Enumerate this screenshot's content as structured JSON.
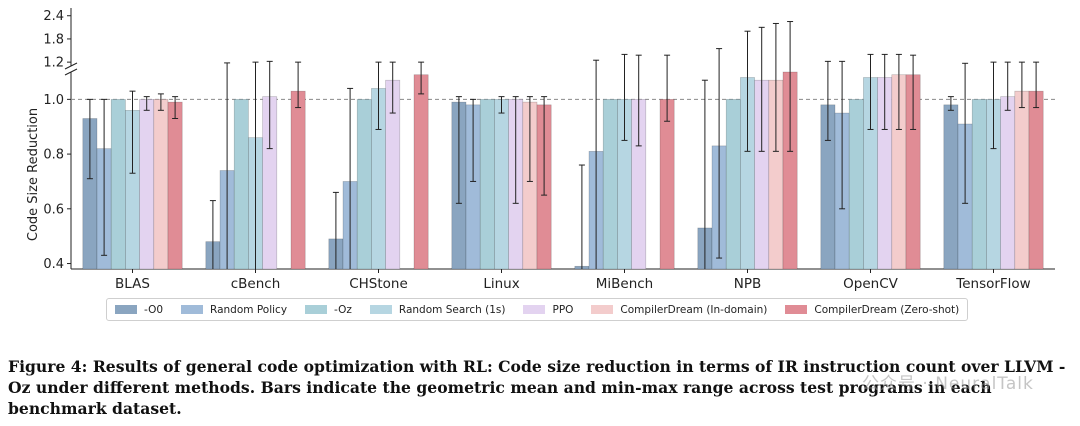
{
  "chart_data": {
    "type": "bar",
    "ylabel": "Code Size Reduction",
    "xlabel": "",
    "y_ticks_lower": [
      "0.4",
      "0.6",
      "0.8",
      "1.0"
    ],
    "y_ticks_upper": [
      "1.2",
      "1.8",
      "2.4"
    ],
    "ylim_lower": [
      0.38,
      1.1
    ],
    "ylim_upper": [
      1.1,
      2.6
    ],
    "reference_line": 1.0,
    "axis_break": true,
    "grid": false,
    "legend_position": "bottom",
    "categories": [
      "BLAS",
      "cBench",
      "CHStone",
      "Linux",
      "MiBench",
      "NPB",
      "OpenCV",
      "TensorFlow"
    ],
    "series": [
      {
        "name": "-O0",
        "color": "#8aa5c0",
        "values": [
          0.93,
          0.48,
          0.49,
          0.99,
          0.39,
          0.53,
          0.98,
          0.98
        ],
        "min": [
          0.71,
          0.32,
          0.34,
          0.62,
          0.13,
          0.28,
          0.85,
          0.96
        ],
        "max": [
          1.0,
          0.63,
          0.66,
          1.01,
          0.76,
          1.07,
          1.22,
          1.01
        ]
      },
      {
        "name": "Random Policy",
        "color": "#a0bbd9",
        "values": [
          0.82,
          0.74,
          0.7,
          0.98,
          0.81,
          0.83,
          0.95,
          0.91
        ],
        "min": [
          0.43,
          0.2,
          0.2,
          0.7,
          0.3,
          0.42,
          0.6,
          0.62
        ],
        "max": [
          1.0,
          1.18,
          1.04,
          1.0,
          1.25,
          1.55,
          1.22,
          1.17
        ]
      },
      {
        "name": "-Oz",
        "color": "#a9cfd8",
        "values": [
          1.0,
          1.0,
          1.0,
          1.0,
          1.0,
          1.0,
          1.0,
          1.0
        ],
        "min": [
          1.0,
          1.0,
          1.0,
          1.0,
          1.0,
          1.0,
          1.0,
          1.0
        ],
        "max": [
          1.0,
          1.0,
          1.0,
          1.0,
          1.0,
          1.0,
          1.0,
          1.0
        ]
      },
      {
        "name": "Random Search (1s)",
        "color": "#b6d6e2",
        "values": [
          0.96,
          0.86,
          1.04,
          1.0,
          1.0,
          1.08,
          1.08,
          1.0
        ],
        "min": [
          0.73,
          0.3,
          0.89,
          0.95,
          0.85,
          0.81,
          0.89,
          0.82
        ],
        "max": [
          1.03,
          1.2,
          1.2,
          1.01,
          1.4,
          2.0,
          1.4,
          1.2
        ]
      },
      {
        "name": "PPO",
        "color": "#e3d3f0",
        "values": [
          1.0,
          1.01,
          1.07,
          1.0,
          1.0,
          1.07,
          1.08,
          1.01
        ],
        "min": [
          0.96,
          0.82,
          0.95,
          0.62,
          0.83,
          0.81,
          0.89,
          0.96
        ],
        "max": [
          1.01,
          1.22,
          1.2,
          1.01,
          1.38,
          2.1,
          1.4,
          1.2
        ]
      },
      {
        "name": "CompilerDream (In-domain)",
        "color": "#f3cccc",
        "values": [
          1.0,
          null,
          null,
          0.99,
          null,
          1.07,
          1.09,
          1.03
        ],
        "min": [
          0.96,
          null,
          null,
          0.7,
          null,
          0.81,
          0.89,
          0.97
        ],
        "max": [
          1.02,
          null,
          null,
          1.01,
          null,
          2.2,
          1.4,
          1.2
        ]
      },
      {
        "name": "CompilerDream (Zero-shot)",
        "color": "#e08c95",
        "values": [
          0.99,
          1.03,
          1.09,
          0.98,
          1.0,
          1.1,
          1.09,
          1.03
        ],
        "min": [
          0.93,
          0.97,
          1.02,
          0.65,
          0.92,
          0.81,
          0.89,
          0.97
        ],
        "max": [
          1.01,
          1.2,
          1.2,
          1.01,
          1.38,
          2.25,
          1.38,
          1.2
        ]
      }
    ]
  },
  "caption": "Figure 4: Results of general code optimization with RL: Code size reduction in terms of IR instruction count over LLVM -Oz under different methods. Bars indicate the geometric mean and min-max range across test programs in each benchmark dataset.",
  "watermark": "公众号 · NeuralTalk"
}
